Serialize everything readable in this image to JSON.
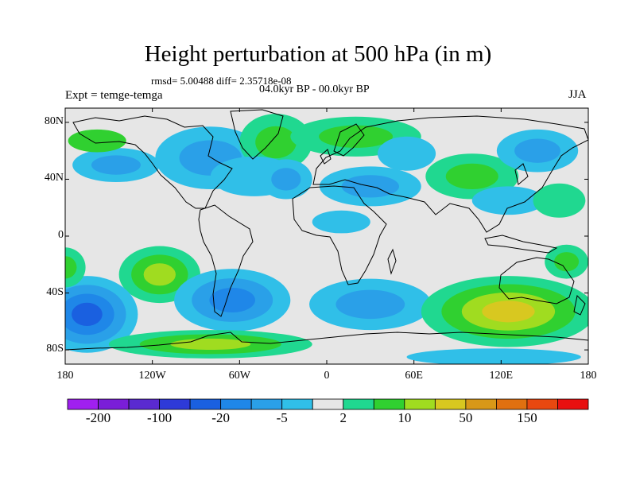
{
  "figure": {
    "title": "Height perturbation at 500 hPa (in m)",
    "stats": "rmsd= 5.00488 diff= 2.35718e-08",
    "period": "04.0kyr BP - 00.0kyr BP",
    "expt": "Expt = temge-temga",
    "season": "JJA"
  },
  "axes": {
    "y_ticks": [
      {
        "label": "80N",
        "lat": 80
      },
      {
        "label": "40N",
        "lat": 40
      },
      {
        "label": "0",
        "lat": 0
      },
      {
        "label": "40S",
        "lat": -40
      },
      {
        "label": "80S",
        "lat": -80
      }
    ],
    "x_ticks": [
      {
        "label": "180",
        "lon": -180
      },
      {
        "label": "120W",
        "lon": -120
      },
      {
        "label": "60W",
        "lon": -60
      },
      {
        "label": "0",
        "lon": 0
      },
      {
        "label": "60E",
        "lon": 60
      },
      {
        "label": "120E",
        "lon": 120
      },
      {
        "label": "180",
        "lon": 180
      }
    ]
  },
  "colorbar": {
    "colors": [
      "#a020f0",
      "#7a1ed8",
      "#5a2ad0",
      "#2e3ad8",
      "#1a60e0",
      "#1f87e8",
      "#2aa0e8",
      "#30bfe8",
      "#e6e6e6",
      "#20d890",
      "#30d030",
      "#a0dc20",
      "#d8c820",
      "#d89818",
      "#e07010",
      "#e84810",
      "#e81010"
    ],
    "labels": [
      {
        "text": "-200",
        "index": 1
      },
      {
        "text": "-100",
        "index": 3
      },
      {
        "text": "-20",
        "index": 5
      },
      {
        "text": "-5",
        "index": 7
      },
      {
        "text": "2",
        "index": 9
      },
      {
        "text": "10",
        "index": 11
      },
      {
        "text": "50",
        "index": 13
      },
      {
        "text": "150",
        "index": 15
      }
    ]
  },
  "field": {
    "background": "#e6e6e6",
    "blobs": [
      {
        "lon": -80,
        "lat": 55,
        "rlon": 38,
        "rlat": 22,
        "levels": [
          "#30bfe8",
          "#2aa0e8"
        ]
      },
      {
        "lon": -145,
        "lat": 50,
        "rlon": 30,
        "rlat": 12,
        "levels": [
          "#30bfe8",
          "#2aa0e8"
        ]
      },
      {
        "lon": -158,
        "lat": 67,
        "rlon": 20,
        "rlat": 8,
        "levels": [
          "#30d030"
        ]
      },
      {
        "lon": -35,
        "lat": 66,
        "rlon": 25,
        "rlat": 20,
        "levels": [
          "#20d890",
          "#30d030"
        ]
      },
      {
        "lon": -50,
        "lat": 42,
        "rlon": 30,
        "rlat": 14,
        "levels": [
          "#30bfe8"
        ]
      },
      {
        "lon": -28,
        "lat": 40,
        "rlon": 18,
        "rlat": 14,
        "levels": [
          "#30bfe8",
          "#2aa0e8"
        ]
      },
      {
        "lon": 20,
        "lat": 70,
        "rlon": 45,
        "rlat": 14,
        "levels": [
          "#20d890",
          "#30d030"
        ]
      },
      {
        "lon": 55,
        "lat": 58,
        "rlon": 20,
        "rlat": 12,
        "levels": [
          "#30bfe8"
        ]
      },
      {
        "lon": 30,
        "lat": 35,
        "rlon": 35,
        "rlat": 14,
        "levels": [
          "#30bfe8",
          "#2aa0e8"
        ]
      },
      {
        "lon": 10,
        "lat": 10,
        "rlon": 20,
        "rlat": 8,
        "levels": [
          "#30bfe8"
        ]
      },
      {
        "lon": 100,
        "lat": 42,
        "rlon": 32,
        "rlat": 16,
        "levels": [
          "#20d890",
          "#30d030"
        ]
      },
      {
        "lon": 145,
        "lat": 60,
        "rlon": 28,
        "rlat": 15,
        "levels": [
          "#30bfe8",
          "#2aa0e8"
        ]
      },
      {
        "lon": 125,
        "lat": 25,
        "rlon": 25,
        "rlat": 10,
        "levels": [
          "#30bfe8"
        ]
      },
      {
        "lon": 160,
        "lat": 25,
        "rlon": 18,
        "rlat": 12,
        "levels": [
          "#20d890"
        ]
      },
      {
        "lon": -115,
        "lat": -27,
        "rlon": 28,
        "rlat": 20,
        "levels": [
          "#20d890",
          "#30d030",
          "#a0dc20"
        ]
      },
      {
        "lon": -165,
        "lat": -55,
        "rlon": 35,
        "rlat": 27,
        "levels": [
          "#30bfe8",
          "#2aa0e8",
          "#1f87e8",
          "#1a60e0"
        ]
      },
      {
        "lon": -65,
        "lat": -45,
        "rlon": 40,
        "rlat": 22,
        "levels": [
          "#30bfe8",
          "#2aa0e8",
          "#1f87e8"
        ]
      },
      {
        "lon": -80,
        "lat": -76,
        "rlon": 70,
        "rlat": 10,
        "levels": [
          "#20d890",
          "#30d030",
          "#a0dc20"
        ]
      },
      {
        "lon": 30,
        "lat": -48,
        "rlon": 42,
        "rlat": 18,
        "levels": [
          "#30bfe8",
          "#2aa0e8"
        ]
      },
      {
        "lon": 125,
        "lat": -53,
        "rlon": 60,
        "rlat": 25,
        "levels": [
          "#20d890",
          "#30d030",
          "#a0dc20",
          "#d8c820"
        ]
      },
      {
        "lon": 165,
        "lat": -18,
        "rlon": 15,
        "rlat": 12,
        "levels": [
          "#20d890",
          "#30d030"
        ]
      },
      {
        "lon": 115,
        "lat": -85,
        "rlon": 60,
        "rlat": 6,
        "levels": [
          "#30bfe8"
        ]
      },
      {
        "lon": -180,
        "lat": -22,
        "rlon": 14,
        "rlat": 14,
        "levels": [
          "#20d890",
          "#30d030"
        ]
      }
    ]
  }
}
